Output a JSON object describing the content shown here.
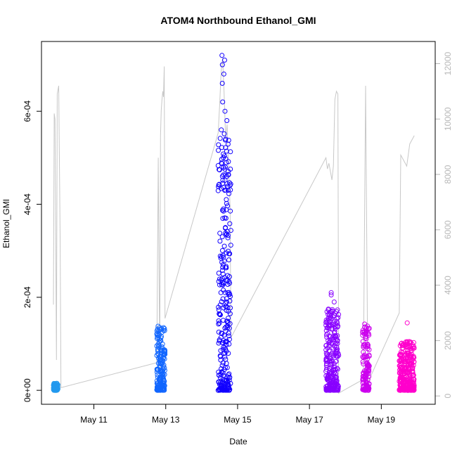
{
  "chart_data": {
    "type": "scatter",
    "title": "ATOM4 Northbound Ethanol_GMI",
    "xlabel": "Date",
    "ylabel": "Ethanol_GMI",
    "xlim": [
      "2021-05-09 13:00",
      "2021-05-20 12:00"
    ],
    "ylim": [
      -3e-05,
      0.00075
    ],
    "y2lim": [
      -300,
      12800
    ],
    "x_ticks": [
      {
        "label": "May 11",
        "date": "2021-05-11"
      },
      {
        "label": "May 13",
        "date": "2021-05-13"
      },
      {
        "label": "May 15",
        "date": "2021-05-15"
      },
      {
        "label": "May 17",
        "date": "2021-05-17"
      },
      {
        "label": "May 19",
        "date": "2021-05-19"
      }
    ],
    "y_ticks": [
      {
        "label": "0e+00",
        "value": 0
      },
      {
        "label": "2e-04",
        "value": 0.0002
      },
      {
        "label": "4e-04",
        "value": 0.0004
      },
      {
        "label": "6e-04",
        "value": 0.0006
      }
    ],
    "y2_ticks": [
      {
        "label": "0",
        "value": 0
      },
      {
        "label": "2000",
        "value": 2000
      },
      {
        "label": "4000",
        "value": 4000
      },
      {
        "label": "6000",
        "value": 6000
      },
      {
        "label": "8000",
        "value": 8000
      },
      {
        "label": "10000",
        "value": 10000
      },
      {
        "label": "12000",
        "value": 12000
      }
    ],
    "grid": false,
    "legend": "none",
    "point_series": [
      {
        "color": "#2299ee",
        "start": "2021-05-09 21:00",
        "end": "2021-05-10 00:00",
        "ymin": 0.0,
        "ymax": 1.5e-05,
        "outliers": []
      },
      {
        "color": "#1166ff",
        "start": "2021-05-12 18:00",
        "end": "2021-05-12 23:30",
        "ymin": 0.0,
        "ymax": 0.00014,
        "outliers": [
          0.000125,
          0.00013,
          0.000135
        ]
      },
      {
        "color": "#1100ff",
        "start": "2021-05-14 11:00",
        "end": "2021-05-14 19:30",
        "ymin": 0.0,
        "ymax": 0.000565,
        "outliers": [
          0.00072,
          0.00071,
          0.0007,
          0.00068,
          0.00066,
          0.00062,
          0.0006,
          0.00058,
          0.00054,
          0.0005,
          0.00048,
          0.00046,
          0.00043,
          0.00041,
          0.00039,
          0.00037,
          0.00035,
          0.00033,
          0.00031,
          0.00029,
          0.00027,
          0.00025,
          0.00023,
          0.00021,
          0.00019
        ]
      },
      {
        "color": "#8800ff",
        "start": "2021-05-17 11:00",
        "end": "2021-05-17 19:30",
        "ymin": 0.0,
        "ymax": 0.000175,
        "outliers": [
          0.00021,
          0.000205,
          0.00019
        ]
      },
      {
        "color": "#cc00ee",
        "start": "2021-05-18 11:30",
        "end": "2021-05-18 16:00",
        "ymin": 0.0,
        "ymax": 0.000145,
        "outliers": []
      },
      {
        "color": "#ff00cc",
        "start": "2021-05-19 12:00",
        "end": "2021-05-19 22:00",
        "ymin": 0.0,
        "ymax": 0.000105,
        "outliers": [
          0.000145
        ]
      }
    ],
    "line_series": {
      "color": "#c8c8c8",
      "axis": "right",
      "points": [
        [
          "2021-05-09 21:00",
          3300
        ],
        [
          "2021-05-09 21:30",
          10200
        ],
        [
          "2021-05-09 22:00",
          10000
        ],
        [
          "2021-05-09 23:00",
          1300
        ],
        [
          "2021-05-09 23:30",
          10900
        ],
        [
          "2021-05-10 00:30",
          11200
        ],
        [
          "2021-05-10 01:30",
          5500
        ],
        [
          "2021-05-10 02:00",
          300
        ],
        [
          "2021-05-12 18:00",
          1200
        ],
        [
          "2021-05-12 19:00",
          8600
        ],
        [
          "2021-05-12 20:00",
          1000
        ],
        [
          "2021-05-12 20:30",
          9400
        ],
        [
          "2021-05-12 21:00",
          10300
        ],
        [
          "2021-05-12 21:30",
          10700
        ],
        [
          "2021-05-12 22:00",
          11000
        ],
        [
          "2021-05-12 22:30",
          10800
        ],
        [
          "2021-05-12 23:00",
          11900
        ],
        [
          "2021-05-12 23:30",
          2800
        ],
        [
          "2021-05-14 11:00",
          9500
        ],
        [
          "2021-05-14 12:00",
          10500
        ],
        [
          "2021-05-14 13:00",
          11700
        ],
        [
          "2021-05-14 14:00",
          12200
        ],
        [
          "2021-05-14 15:00",
          10900
        ],
        [
          "2021-05-14 16:00",
          9300
        ],
        [
          "2021-05-14 17:00",
          9800
        ],
        [
          "2021-05-14 18:00",
          8200
        ],
        [
          "2021-05-14 19:00",
          6800
        ],
        [
          "2021-05-14 19:30",
          2100
        ],
        [
          "2021-05-17 11:00",
          8600
        ],
        [
          "2021-05-17 12:00",
          8200
        ],
        [
          "2021-05-17 13:00",
          8400
        ],
        [
          "2021-05-17 14:00",
          8100
        ],
        [
          "2021-05-17 15:00",
          7800
        ],
        [
          "2021-05-17 16:00",
          8300
        ],
        [
          "2021-05-17 17:00",
          10700
        ],
        [
          "2021-05-17 18:00",
          11000
        ],
        [
          "2021-05-17 19:00",
          10900
        ],
        [
          "2021-05-17 19:30",
          100
        ],
        [
          "2021-05-18 12:00",
          600
        ],
        [
          "2021-05-18 13:30",
          11200
        ],
        [
          "2021-05-18 15:00",
          400
        ],
        [
          "2021-05-18 16:00",
          600
        ],
        [
          "2021-05-19 12:00",
          3000
        ],
        [
          "2021-05-19 13:00",
          8700
        ],
        [
          "2021-05-19 15:00",
          8500
        ],
        [
          "2021-05-19 17:00",
          8300
        ],
        [
          "2021-05-19 19:00",
          9100
        ],
        [
          "2021-05-19 21:00",
          9300
        ],
        [
          "2021-05-19 22:00",
          9400
        ]
      ]
    }
  }
}
